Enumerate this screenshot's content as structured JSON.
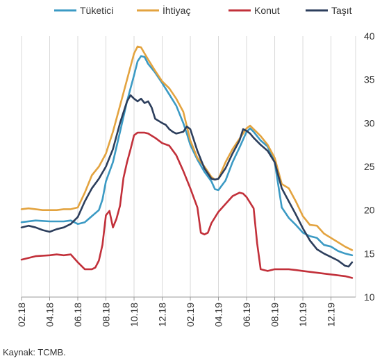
{
  "chart_data": {
    "type": "line",
    "title": "",
    "xlabel": "",
    "ylabel": "",
    "ylim": [
      10,
      40
    ],
    "yticks": [
      10,
      15,
      20,
      25,
      30,
      35,
      40
    ],
    "y_axis_position": "right",
    "grid": "vertical",
    "legend_placement": "top",
    "x_ticks": [
      "02.18",
      "04.18",
      "06.18",
      "08.18",
      "10.18",
      "12.18",
      "02.19",
      "04.19",
      "06.19",
      "08.19",
      "10.19",
      "12.19"
    ],
    "x_tick_index": [
      0,
      8,
      16,
      24,
      32,
      40,
      48,
      56,
      64,
      72,
      80,
      88
    ],
    "x_count": 96,
    "series": [
      {
        "name": "Tüketici",
        "color": "#3b9ac4",
        "points": [
          [
            0,
            18.6
          ],
          [
            4,
            18.8
          ],
          [
            8,
            18.7
          ],
          [
            12,
            18.7
          ],
          [
            14,
            18.8
          ],
          [
            16,
            18.4
          ],
          [
            18,
            18.6
          ],
          [
            20,
            19.3
          ],
          [
            22,
            20.0
          ],
          [
            23,
            21.2
          ],
          [
            24,
            23.3
          ],
          [
            26,
            25.5
          ],
          [
            28,
            29.0
          ],
          [
            30,
            32.5
          ],
          [
            32,
            35.5
          ],
          [
            33,
            37.1
          ],
          [
            34,
            37.7
          ],
          [
            35,
            37.6
          ],
          [
            36,
            36.8
          ],
          [
            38,
            35.8
          ],
          [
            40,
            34.6
          ],
          [
            42,
            33.3
          ],
          [
            44,
            32.0
          ],
          [
            46,
            30.0
          ],
          [
            47,
            28.8
          ],
          [
            48,
            27.5
          ],
          [
            50,
            25.8
          ],
          [
            52,
            24.4
          ],
          [
            54,
            23.3
          ],
          [
            55,
            22.4
          ],
          [
            56,
            22.3
          ],
          [
            58,
            23.4
          ],
          [
            60,
            25.5
          ],
          [
            62,
            27.2
          ],
          [
            64,
            29.0
          ],
          [
            65,
            29.4
          ],
          [
            66,
            29.0
          ],
          [
            68,
            28.0
          ],
          [
            70,
            27.3
          ],
          [
            72,
            25.5
          ],
          [
            74,
            20.3
          ],
          [
            76,
            19.1
          ],
          [
            78,
            18.3
          ],
          [
            80,
            17.4
          ],
          [
            82,
            17.0
          ],
          [
            84,
            16.8
          ],
          [
            86,
            16.0
          ],
          [
            88,
            15.8
          ],
          [
            90,
            15.3
          ],
          [
            92,
            15.0
          ],
          [
            94,
            14.8
          ]
        ]
      },
      {
        "name": "İhtiyaç",
        "color": "#e3a33f",
        "points": [
          [
            0,
            20.1
          ],
          [
            2,
            20.2
          ],
          [
            4,
            20.1
          ],
          [
            6,
            20.0
          ],
          [
            8,
            20.0
          ],
          [
            10,
            20.0
          ],
          [
            12,
            20.1
          ],
          [
            14,
            20.1
          ],
          [
            16,
            20.3
          ],
          [
            18,
            22.0
          ],
          [
            20,
            24.0
          ],
          [
            22,
            25.0
          ],
          [
            24,
            26.5
          ],
          [
            26,
            29.0
          ],
          [
            28,
            32.0
          ],
          [
            30,
            35.0
          ],
          [
            32,
            38.0
          ],
          [
            33,
            38.8
          ],
          [
            34,
            38.7
          ],
          [
            35,
            38.0
          ],
          [
            36,
            37.3
          ],
          [
            38,
            36.0
          ],
          [
            40,
            34.8
          ],
          [
            42,
            34.0
          ],
          [
            44,
            32.8
          ],
          [
            46,
            31.3
          ],
          [
            48,
            28.0
          ],
          [
            50,
            26.0
          ],
          [
            52,
            25.0
          ],
          [
            54,
            23.8
          ],
          [
            55,
            23.5
          ],
          [
            56,
            23.6
          ],
          [
            58,
            25.5
          ],
          [
            60,
            27.0
          ],
          [
            62,
            28.2
          ],
          [
            64,
            29.4
          ],
          [
            65,
            29.7
          ],
          [
            66,
            29.3
          ],
          [
            68,
            28.5
          ],
          [
            70,
            27.5
          ],
          [
            72,
            26.0
          ],
          [
            74,
            23.0
          ],
          [
            76,
            22.5
          ],
          [
            78,
            21.0
          ],
          [
            80,
            19.3
          ],
          [
            82,
            18.3
          ],
          [
            84,
            18.2
          ],
          [
            86,
            17.3
          ],
          [
            88,
            16.8
          ],
          [
            90,
            16.3
          ],
          [
            92,
            15.8
          ],
          [
            94,
            15.4
          ]
        ]
      },
      {
        "name": "Konut",
        "color": "#c2303a",
        "points": [
          [
            0,
            14.3
          ],
          [
            4,
            14.7
          ],
          [
            8,
            14.8
          ],
          [
            10,
            14.9
          ],
          [
            12,
            14.8
          ],
          [
            14,
            14.9
          ],
          [
            16,
            14.0
          ],
          [
            18,
            13.2
          ],
          [
            20,
            13.2
          ],
          [
            21,
            13.4
          ],
          [
            22,
            14.2
          ],
          [
            23,
            16.0
          ],
          [
            24,
            19.4
          ],
          [
            25,
            19.9
          ],
          [
            26,
            18.0
          ],
          [
            27,
            19.0
          ],
          [
            28,
            20.5
          ],
          [
            29,
            23.7
          ],
          [
            30,
            25.5
          ],
          [
            31,
            27.0
          ],
          [
            32,
            28.6
          ],
          [
            33,
            28.9
          ],
          [
            34,
            28.9
          ],
          [
            35,
            28.9
          ],
          [
            36,
            28.8
          ],
          [
            38,
            28.3
          ],
          [
            40,
            27.7
          ],
          [
            42,
            27.4
          ],
          [
            44,
            26.3
          ],
          [
            46,
            24.5
          ],
          [
            48,
            22.5
          ],
          [
            50,
            20.3
          ],
          [
            51,
            17.4
          ],
          [
            52,
            17.2
          ],
          [
            53,
            17.4
          ],
          [
            54,
            18.5
          ],
          [
            56,
            19.8
          ],
          [
            58,
            20.7
          ],
          [
            60,
            21.6
          ],
          [
            62,
            22.0
          ],
          [
            63,
            21.9
          ],
          [
            64,
            21.5
          ],
          [
            66,
            20.2
          ],
          [
            67,
            16.2
          ],
          [
            68,
            13.2
          ],
          [
            70,
            13.0
          ],
          [
            72,
            13.2
          ],
          [
            74,
            13.2
          ],
          [
            76,
            13.2
          ],
          [
            78,
            13.1
          ],
          [
            80,
            13.0
          ],
          [
            82,
            12.9
          ],
          [
            84,
            12.8
          ],
          [
            86,
            12.7
          ],
          [
            88,
            12.6
          ],
          [
            90,
            12.5
          ],
          [
            92,
            12.4
          ],
          [
            94,
            12.2
          ]
        ]
      },
      {
        "name": "Taşıt",
        "color": "#2c3e5c",
        "points": [
          [
            0,
            18.0
          ],
          [
            2,
            18.2
          ],
          [
            4,
            18.0
          ],
          [
            6,
            17.7
          ],
          [
            8,
            17.5
          ],
          [
            10,
            17.8
          ],
          [
            12,
            18.0
          ],
          [
            14,
            18.4
          ],
          [
            16,
            19.2
          ],
          [
            18,
            21.0
          ],
          [
            20,
            22.5
          ],
          [
            22,
            23.6
          ],
          [
            24,
            25.0
          ],
          [
            26,
            27.0
          ],
          [
            28,
            30.0
          ],
          [
            30,
            32.5
          ],
          [
            31,
            33.2
          ],
          [
            32,
            32.8
          ],
          [
            33,
            32.5
          ],
          [
            34,
            32.8
          ],
          [
            35,
            32.3
          ],
          [
            36,
            32.5
          ],
          [
            37,
            31.8
          ],
          [
            38,
            30.5
          ],
          [
            40,
            30.0
          ],
          [
            41,
            29.8
          ],
          [
            42,
            29.3
          ],
          [
            43,
            29.0
          ],
          [
            44,
            28.8
          ],
          [
            46,
            29.0
          ],
          [
            47,
            29.6
          ],
          [
            48,
            29.3
          ],
          [
            50,
            26.8
          ],
          [
            52,
            24.8
          ],
          [
            54,
            23.6
          ],
          [
            55,
            23.5
          ],
          [
            56,
            23.6
          ],
          [
            58,
            24.8
          ],
          [
            60,
            26.5
          ],
          [
            62,
            28.0
          ],
          [
            63,
            29.3
          ],
          [
            64,
            29.1
          ],
          [
            65,
            28.8
          ],
          [
            66,
            28.3
          ],
          [
            68,
            27.5
          ],
          [
            70,
            26.8
          ],
          [
            72,
            25.5
          ],
          [
            74,
            22.5
          ],
          [
            76,
            21.0
          ],
          [
            78,
            19.5
          ],
          [
            80,
            17.9
          ],
          [
            82,
            16.5
          ],
          [
            84,
            15.5
          ],
          [
            86,
            15.0
          ],
          [
            88,
            14.6
          ],
          [
            90,
            14.2
          ],
          [
            92,
            13.6
          ],
          [
            93,
            13.5
          ],
          [
            94,
            14.0
          ]
        ]
      }
    ]
  },
  "footer": {
    "source": "Kaynak: TCMB."
  }
}
